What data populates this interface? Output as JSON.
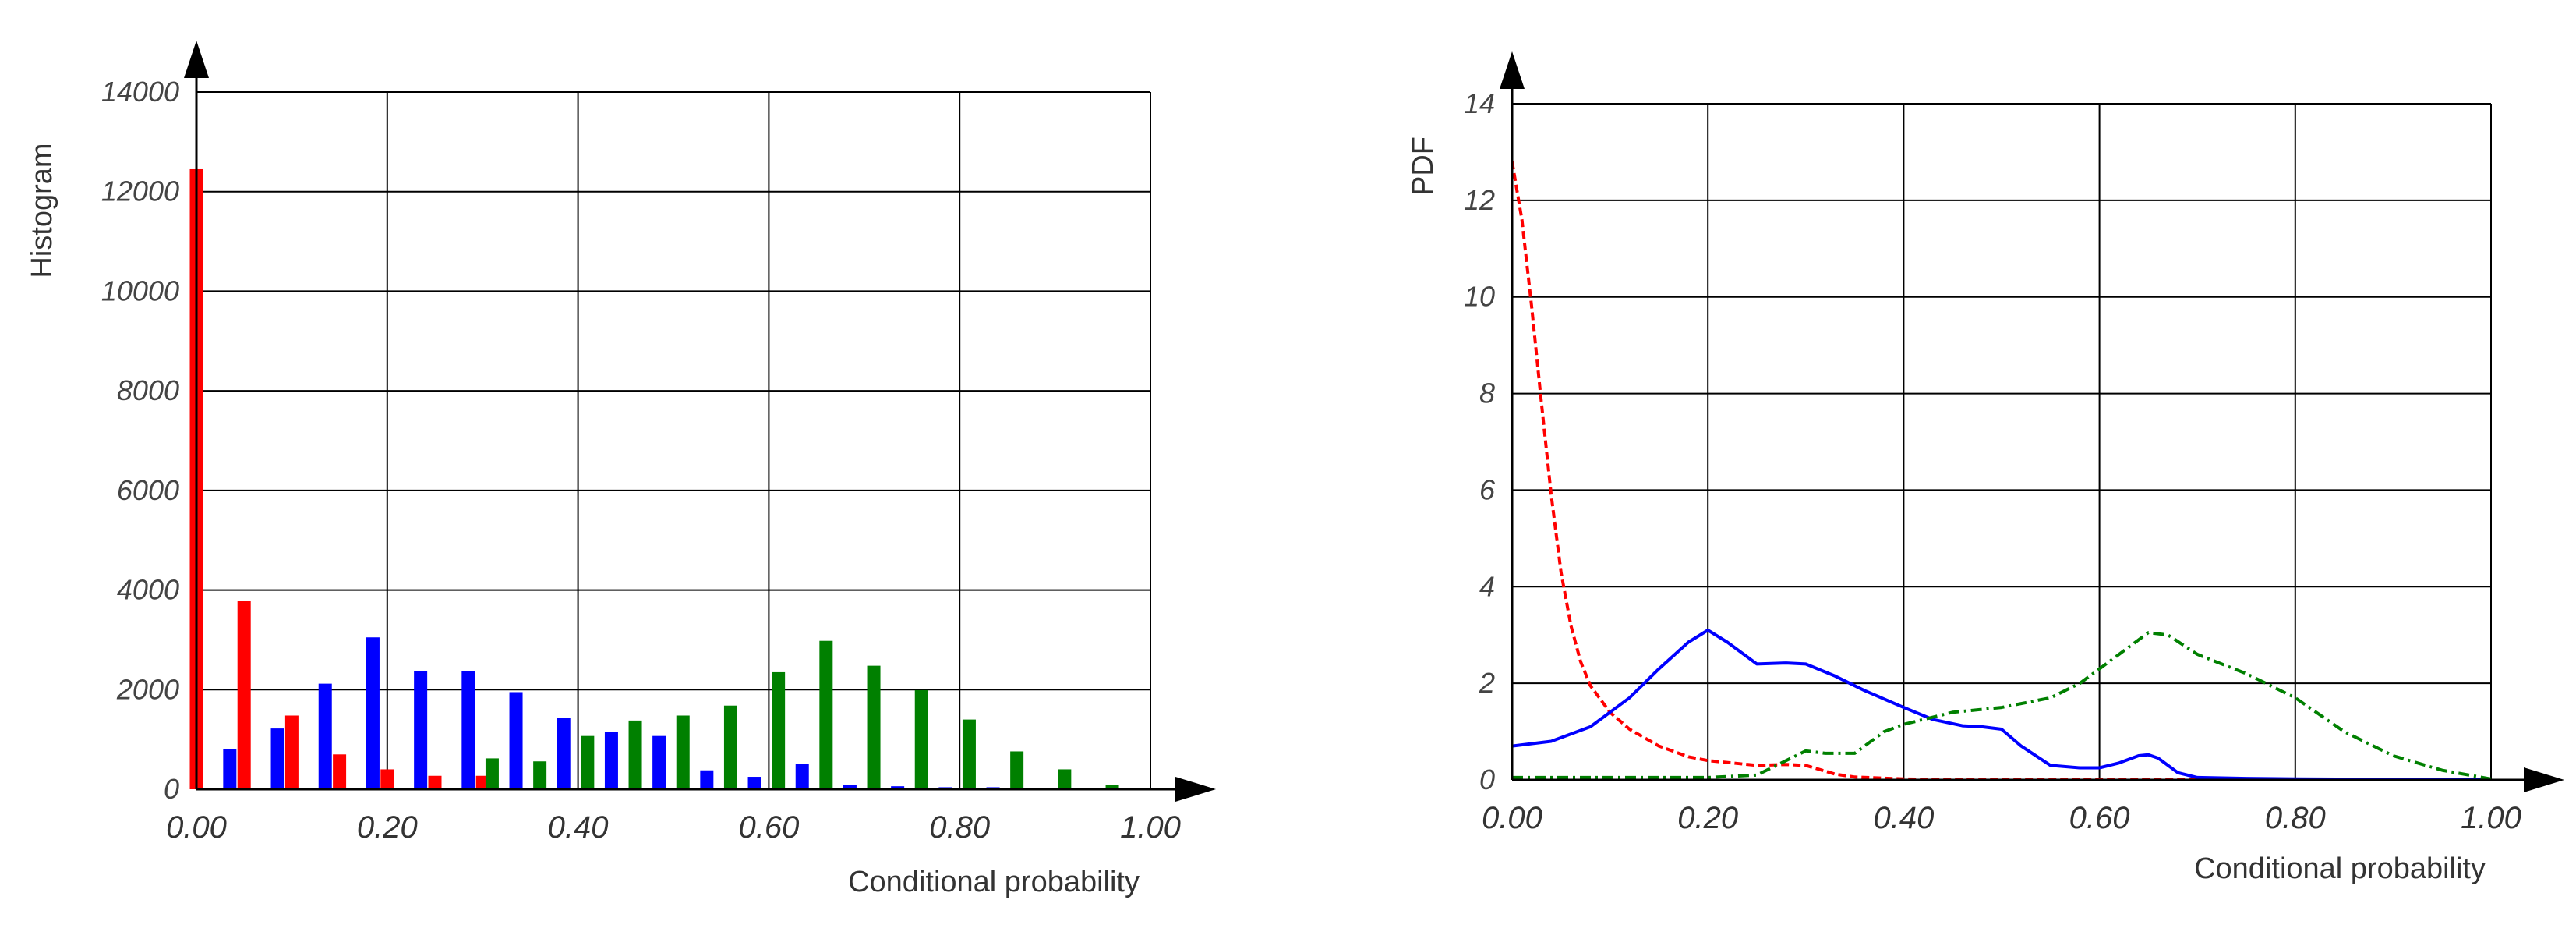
{
  "chart_data": [
    {
      "type": "bar",
      "title": "",
      "xlabel": "Conditional probability",
      "ylabel": "Histogram",
      "xlim": [
        0,
        1
      ],
      "ylim": [
        0,
        14000
      ],
      "x_ticks": [
        "0.00",
        "0.20",
        "0.40",
        "0.60",
        "0.80",
        "1.00"
      ],
      "y_ticks": [
        "0",
        "2000",
        "4000",
        "6000",
        "8000",
        "10000",
        "12000",
        "14000"
      ],
      "grid": true,
      "legend": "none",
      "series": [
        {
          "color": "#ff0000",
          "points": [
            {
              "x": 0.0,
              "y": 12450
            },
            {
              "x": 0.05,
              "y": 3780
            },
            {
              "x": 0.1,
              "y": 1480
            },
            {
              "x": 0.15,
              "y": 700
            },
            {
              "x": 0.2,
              "y": 400
            },
            {
              "x": 0.25,
              "y": 270
            },
            {
              "x": 0.3,
              "y": 270
            }
          ]
        },
        {
          "color": "#0000ff",
          "points": [
            {
              "x": 0.035,
              "y": 800
            },
            {
              "x": 0.085,
              "y": 1220
            },
            {
              "x": 0.135,
              "y": 2120
            },
            {
              "x": 0.185,
              "y": 3050
            },
            {
              "x": 0.235,
              "y": 2380
            },
            {
              "x": 0.285,
              "y": 2370
            },
            {
              "x": 0.335,
              "y": 1950
            },
            {
              "x": 0.385,
              "y": 1440
            },
            {
              "x": 0.435,
              "y": 1150
            },
            {
              "x": 0.485,
              "y": 1070
            },
            {
              "x": 0.535,
              "y": 380
            },
            {
              "x": 0.585,
              "y": 250
            },
            {
              "x": 0.635,
              "y": 510
            },
            {
              "x": 0.685,
              "y": 80
            },
            {
              "x": 0.735,
              "y": 60
            },
            {
              "x": 0.785,
              "y": 40
            },
            {
              "x": 0.835,
              "y": 40
            },
            {
              "x": 0.885,
              "y": 30
            },
            {
              "x": 0.935,
              "y": 30
            }
          ]
        },
        {
          "color": "#008000",
          "points": [
            {
              "x": 0.31,
              "y": 620
            },
            {
              "x": 0.36,
              "y": 560
            },
            {
              "x": 0.41,
              "y": 1070
            },
            {
              "x": 0.46,
              "y": 1380
            },
            {
              "x": 0.51,
              "y": 1480
            },
            {
              "x": 0.56,
              "y": 1680
            },
            {
              "x": 0.61,
              "y": 2350
            },
            {
              "x": 0.66,
              "y": 2980
            },
            {
              "x": 0.71,
              "y": 2480
            },
            {
              "x": 0.76,
              "y": 1990
            },
            {
              "x": 0.81,
              "y": 1400
            },
            {
              "x": 0.86,
              "y": 760
            },
            {
              "x": 0.91,
              "y": 400
            },
            {
              "x": 0.96,
              "y": 80
            }
          ]
        }
      ]
    },
    {
      "type": "line",
      "title": "",
      "xlabel": "Conditional probability",
      "ylabel": "PDF",
      "xlim": [
        0,
        1
      ],
      "ylim": [
        0,
        14
      ],
      "x_ticks": [
        "0.00",
        "0.20",
        "0.40",
        "0.60",
        "0.80",
        "1.00"
      ],
      "y_ticks": [
        "0",
        "2",
        "4",
        "6",
        "8",
        "10",
        "12",
        "14"
      ],
      "grid": true,
      "legend": "none",
      "series": [
        {
          "color": "#ff0000",
          "style": "dashed",
          "x": [
            0,
            0.01,
            0.02,
            0.03,
            0.04,
            0.05,
            0.06,
            0.07,
            0.08,
            0.1,
            0.12,
            0.15,
            0.18,
            0.2,
            0.25,
            0.28,
            0.3,
            0.33,
            0.35,
            0.4,
            0.45,
            0.5,
            0.6,
            0.7,
            0.8,
            0.9,
            1.0
          ],
          "y": [
            12.8,
            11.6,
            9.8,
            7.8,
            5.9,
            4.3,
            3.2,
            2.45,
            1.95,
            1.4,
            1.05,
            0.7,
            0.48,
            0.4,
            0.3,
            0.32,
            0.3,
            0.12,
            0.06,
            0.02,
            0.01,
            0.01,
            0.01,
            0.0,
            0.0,
            0.0,
            0.0
          ]
        },
        {
          "color": "#0000ff",
          "style": "solid",
          "x": [
            0,
            0.04,
            0.08,
            0.12,
            0.15,
            0.18,
            0.2,
            0.22,
            0.25,
            0.28,
            0.3,
            0.33,
            0.36,
            0.4,
            0.43,
            0.46,
            0.48,
            0.5,
            0.52,
            0.55,
            0.58,
            0.6,
            0.62,
            0.64,
            0.65,
            0.66,
            0.68,
            0.7,
            0.75,
            0.8,
            0.9,
            1.0
          ],
          "y": [
            0.7,
            0.8,
            1.1,
            1.7,
            2.3,
            2.85,
            3.1,
            2.85,
            2.4,
            2.42,
            2.4,
            2.15,
            1.85,
            1.5,
            1.25,
            1.12,
            1.1,
            1.05,
            0.7,
            0.3,
            0.25,
            0.25,
            0.35,
            0.5,
            0.52,
            0.45,
            0.15,
            0.05,
            0.03,
            0.02,
            0.01,
            0.0
          ]
        },
        {
          "color": "#008000",
          "style": "dash-dot",
          "x": [
            0,
            0.1,
            0.2,
            0.25,
            0.28,
            0.3,
            0.32,
            0.35,
            0.38,
            0.4,
            0.45,
            0.5,
            0.55,
            0.58,
            0.6,
            0.63,
            0.65,
            0.67,
            0.7,
            0.75,
            0.8,
            0.85,
            0.9,
            0.95,
            1.0
          ],
          "y": [
            0.05,
            0.05,
            0.05,
            0.1,
            0.4,
            0.6,
            0.55,
            0.55,
            1.0,
            1.15,
            1.4,
            1.5,
            1.7,
            2.0,
            2.3,
            2.75,
            3.05,
            3.0,
            2.6,
            2.2,
            1.7,
            1.0,
            0.5,
            0.2,
            0.02
          ]
        }
      ]
    }
  ]
}
